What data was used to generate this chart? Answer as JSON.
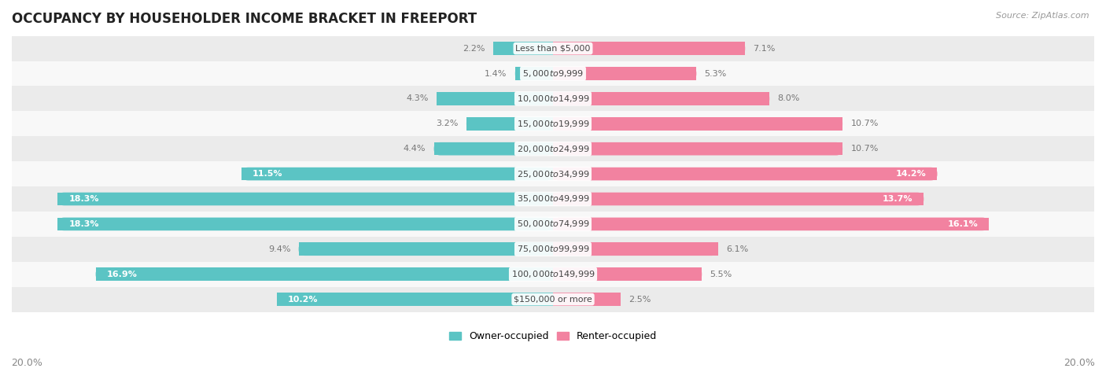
{
  "title": "OCCUPANCY BY HOUSEHOLDER INCOME BRACKET IN FREEPORT",
  "source": "Source: ZipAtlas.com",
  "categories": [
    "Less than $5,000",
    "$5,000 to $9,999",
    "$10,000 to $14,999",
    "$15,000 to $19,999",
    "$20,000 to $24,999",
    "$25,000 to $34,999",
    "$35,000 to $49,999",
    "$50,000 to $74,999",
    "$75,000 to $99,999",
    "$100,000 to $149,999",
    "$150,000 or more"
  ],
  "owner_values": [
    2.2,
    1.4,
    4.3,
    3.2,
    4.4,
    11.5,
    18.3,
    18.3,
    9.4,
    16.9,
    10.2
  ],
  "renter_values": [
    7.1,
    5.3,
    8.0,
    10.7,
    10.7,
    14.2,
    13.7,
    16.1,
    6.1,
    5.5,
    2.5
  ],
  "owner_color": "#5bc4c4",
  "renter_color": "#f282a0",
  "bar_height": 0.52,
  "xlim": 20.0,
  "bg_row_even": "#ebebeb",
  "bg_row_odd": "#f8f8f8",
  "title_fontsize": 12,
  "label_fontsize": 8,
  "cat_fontsize": 8,
  "tick_fontsize": 9,
  "legend_fontsize": 9,
  "source_fontsize": 8,
  "white_text_threshold_owner": 10.0,
  "white_text_threshold_renter": 13.0
}
